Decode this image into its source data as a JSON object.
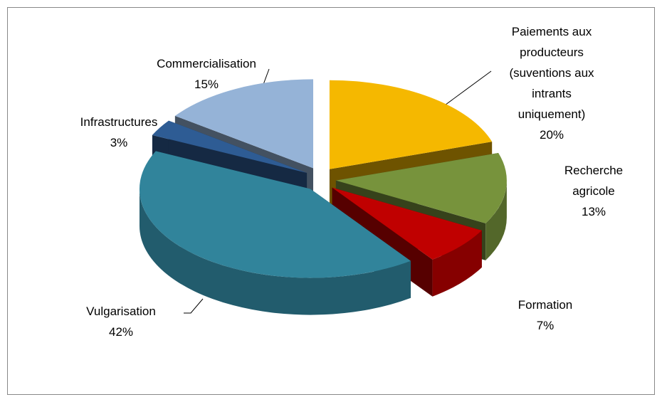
{
  "chart_data": {
    "type": "pie3d",
    "categories": [
      "Paiements aux producteurs (suventions aux intrants uniquement)",
      "Recherche agricole",
      "Formation",
      "Vulgarisation",
      "Infrastructures",
      "Commercialisation"
    ],
    "values": [
      20,
      13,
      7,
      42,
      3,
      15
    ],
    "value_labels": [
      "20%",
      "13%",
      "7%",
      "42%",
      "3%",
      "15%"
    ],
    "colors": [
      "#f5b800",
      "#77933c",
      "#c00000",
      "#31849b",
      "#2e5c94",
      "#95b3d7"
    ]
  }
}
